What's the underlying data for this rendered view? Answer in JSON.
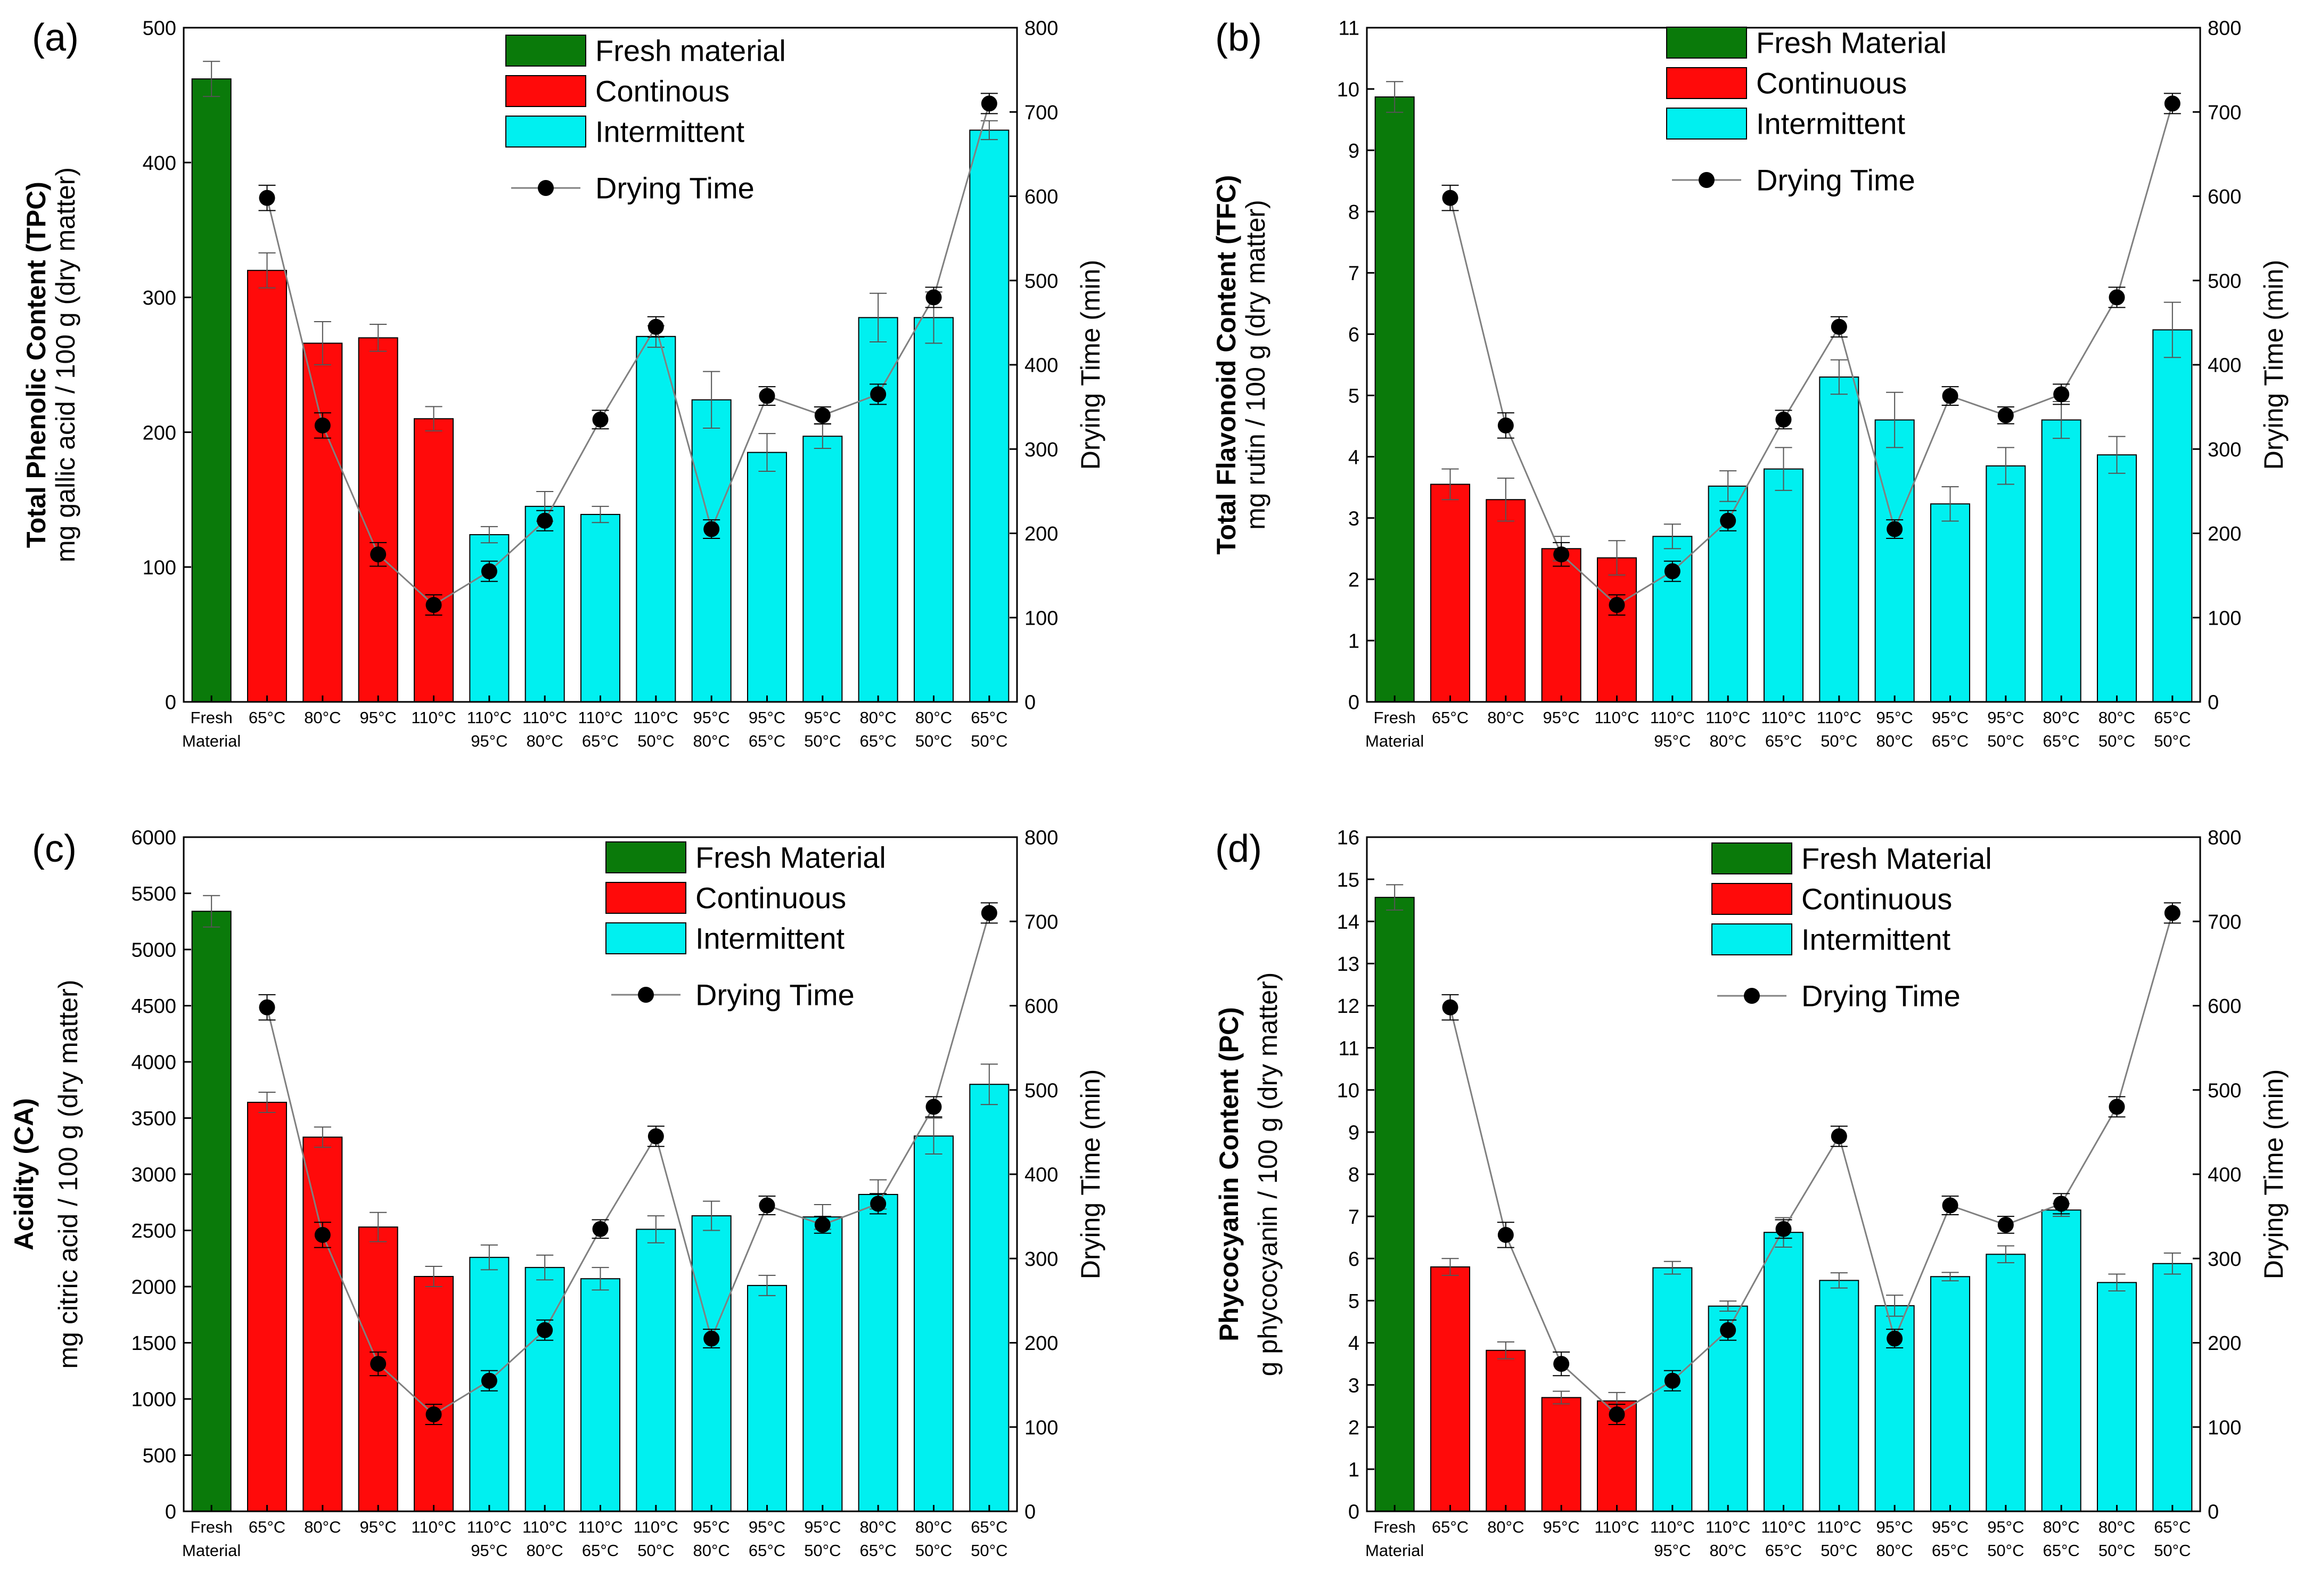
{
  "colors": {
    "fresh": "#0a7a0a",
    "continuous": "#ff0a0a",
    "intermittent": "#00f0f0",
    "dot": "#000000",
    "line": "#808080"
  },
  "categories": [
    [
      "Fresh",
      "Material"
    ],
    [
      "65°C",
      ""
    ],
    [
      "80°C",
      ""
    ],
    [
      "95°C",
      ""
    ],
    [
      "110°C",
      ""
    ],
    [
      "110°C",
      "95°C"
    ],
    [
      "110°C",
      "80°C"
    ],
    [
      "110°C",
      "65°C"
    ],
    [
      "110°C",
      "50°C"
    ],
    [
      "95°C",
      "80°C"
    ],
    [
      "95°C",
      "65°C"
    ],
    [
      "95°C",
      "50°C"
    ],
    [
      "80°C",
      "65°C"
    ],
    [
      "80°C",
      "50°C"
    ],
    [
      "65°C",
      "50°C"
    ]
  ],
  "groups": [
    "fresh",
    "continuous",
    "continuous",
    "continuous",
    "continuous",
    "intermittent",
    "intermittent",
    "intermittent",
    "intermittent",
    "intermittent",
    "intermittent",
    "intermittent",
    "intermittent",
    "intermittent",
    "intermittent"
  ],
  "drying_time_min": [
    null,
    598,
    328,
    175,
    115,
    155,
    215,
    335,
    445,
    205,
    363,
    340,
    365,
    480,
    710
  ],
  "chart_data": [
    {
      "type": "bar",
      "panel_label": "(a)",
      "ylabel_bold": "Total Phenolic Content (TPC)",
      "ylabel_unit": "mg gallic acid / 100 g (dry matter)",
      "y2label": "Drying Time (min)",
      "ylim": [
        0,
        500
      ],
      "yticks": [
        0,
        100,
        200,
        300,
        400,
        500
      ],
      "y2lim": [
        0,
        800
      ],
      "y2ticks": [
        0,
        100,
        200,
        300,
        400,
        500,
        600,
        700,
        800
      ],
      "legend": [
        "Fresh material",
        "Continous",
        "Intermittent",
        "Drying Time"
      ],
      "legend_position": "top-center",
      "values": [
        462,
        320,
        266,
        270,
        210,
        124,
        145,
        139,
        271,
        224,
        185,
        197,
        285,
        285,
        424
      ],
      "errors": [
        13,
        13,
        16,
        10,
        9,
        6,
        11,
        6,
        8,
        21,
        14,
        9,
        18,
        19,
        7
      ],
      "time_errors": [
        null,
        15,
        15,
        14,
        12,
        12,
        12,
        11,
        12,
        11,
        11,
        10,
        12,
        12,
        12
      ]
    },
    {
      "type": "bar",
      "panel_label": "(b)",
      "ylabel_bold": "Total Flavonoid Content (TFC)",
      "ylabel_unit": "mg rutin / 100 g (dry matter)",
      "y2label": "Drying Time (min)",
      "ylim": [
        0,
        11
      ],
      "yticks": [
        0,
        1,
        2,
        3,
        4,
        5,
        6,
        7,
        8,
        9,
        10,
        11
      ],
      "y2lim": [
        0,
        800
      ],
      "y2ticks": [
        0,
        100,
        200,
        300,
        400,
        500,
        600,
        700,
        800
      ],
      "legend": [
        "Fresh Material",
        "Continuous",
        "Intermittent",
        "Drying Time"
      ],
      "legend_position": "top-center",
      "values": [
        9.87,
        3.55,
        3.3,
        2.5,
        2.35,
        2.7,
        3.52,
        3.8,
        5.3,
        4.6,
        3.23,
        3.85,
        4.6,
        4.03,
        6.07
      ],
      "errors": [
        0.25,
        0.25,
        0.35,
        0.2,
        0.28,
        0.2,
        0.25,
        0.35,
        0.28,
        0.45,
        0.28,
        0.3,
        0.3,
        0.3,
        0.45
      ],
      "time_errors": [
        null,
        15,
        15,
        14,
        12,
        12,
        12,
        11,
        12,
        11,
        11,
        10,
        12,
        12,
        12
      ]
    },
    {
      "type": "bar",
      "panel_label": "(c)",
      "ylabel_bold": "Acidity (CA)",
      "ylabel_unit": "mg citric acid / 100 g (dry matter)",
      "y2label": "Drying Time (min)",
      "ylim": [
        0,
        6000
      ],
      "yticks": [
        0,
        500,
        1000,
        1500,
        2000,
        2500,
        3000,
        3500,
        4000,
        4500,
        5000,
        5500,
        6000
      ],
      "y2lim": [
        0,
        800
      ],
      "y2ticks": [
        0,
        100,
        200,
        300,
        400,
        500,
        600,
        700,
        800
      ],
      "legend": [
        "Fresh Material",
        "Continuous",
        "Intermittent",
        "Drying Time"
      ],
      "legend_position": "top-center",
      "values": [
        5340,
        3640,
        3330,
        2530,
        2090,
        2260,
        2170,
        2070,
        2510,
        2630,
        2010,
        2620,
        2820,
        3340,
        3800
      ],
      "errors": [
        140,
        90,
        90,
        130,
        90,
        110,
        110,
        100,
        120,
        130,
        90,
        110,
        130,
        160,
        180
      ],
      "time_errors": [
        null,
        15,
        15,
        14,
        12,
        12,
        12,
        11,
        12,
        11,
        11,
        10,
        12,
        12,
        12
      ]
    },
    {
      "type": "bar",
      "panel_label": "(d)",
      "ylabel_bold": "Phycocyanin Content (PC)",
      "ylabel_unit": "g phycocyanin / 100 g (dry matter)",
      "y2label": "Drying Time (min)",
      "ylim": [
        0,
        16
      ],
      "yticks": [
        0,
        1,
        2,
        3,
        4,
        5,
        6,
        7,
        8,
        9,
        10,
        11,
        12,
        13,
        14,
        15,
        16
      ],
      "y2lim": [
        0,
        800
      ],
      "y2ticks": [
        0,
        100,
        200,
        300,
        400,
        500,
        600,
        700,
        800
      ],
      "legend": [
        "Fresh Material",
        "Continuous",
        "Intermittent",
        "Drying Time"
      ],
      "legend_position": "top-center",
      "values": [
        14.57,
        5.8,
        3.82,
        2.7,
        2.62,
        5.78,
        4.87,
        6.62,
        5.48,
        4.88,
        5.57,
        6.1,
        7.15,
        5.43,
        5.88
      ],
      "errors": [
        0.3,
        0.2,
        0.2,
        0.15,
        0.2,
        0.15,
        0.12,
        0.35,
        0.18,
        0.25,
        0.1,
        0.2,
        0.15,
        0.2,
        0.25
      ],
      "time_errors": [
        null,
        15,
        15,
        14,
        12,
        12,
        12,
        11,
        12,
        11,
        11,
        10,
        12,
        12,
        12
      ]
    }
  ]
}
